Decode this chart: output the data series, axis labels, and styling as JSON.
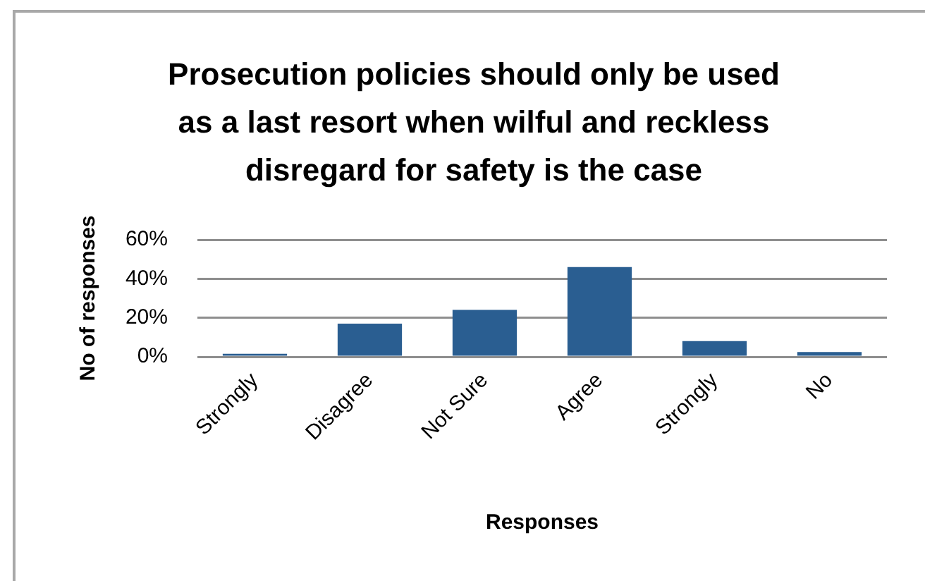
{
  "chart_data": {
    "type": "bar",
    "title": "Prosecution policies should only be used as a last resort when wilful and reckless disregard for safety is the case",
    "xlabel": "Responses",
    "ylabel": "No of responses",
    "categories": [
      "Strongly",
      "Disagree",
      "Not Sure",
      "Agree",
      "Strongly",
      "No"
    ],
    "values": [
      1.5,
      17,
      24,
      46,
      8,
      2.4
    ],
    "color": "#2a5e91",
    "ylim": [
      0,
      60
    ],
    "yticks": [
      {
        "value": 0,
        "label": "0%"
      },
      {
        "value": 20,
        "label": "20%"
      },
      {
        "value": 40,
        "label": "40%"
      },
      {
        "value": 60,
        "label": "60%"
      }
    ],
    "grid": "y"
  }
}
